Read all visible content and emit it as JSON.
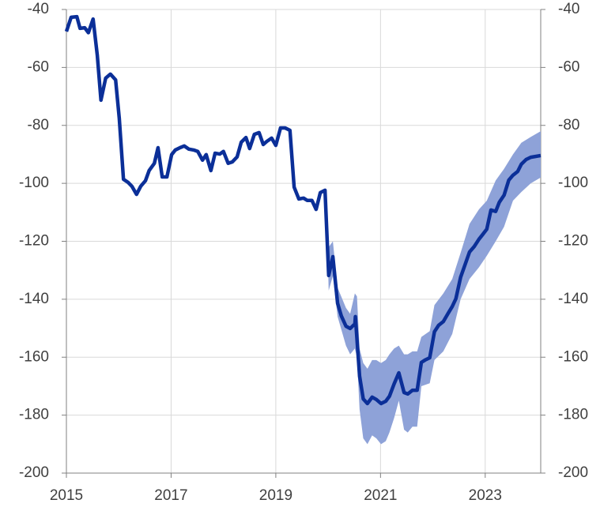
{
  "chart_data": {
    "type": "line",
    "xlim": [
      2015,
      2024.06
    ],
    "xticks": [
      2015,
      2017,
      2019,
      2021,
      2023
    ],
    "ylim": [
      -200,
      -40
    ],
    "yticks": [
      -200,
      -180,
      -160,
      -140,
      -120,
      -100,
      -80,
      -60,
      -40
    ],
    "y2lim": [
      -200,
      -40
    ],
    "y2ticks": [
      -200,
      -180,
      -160,
      -140,
      -120,
      -100,
      -80,
      -60,
      -40
    ],
    "grid": true,
    "band": {
      "color": "#8ea2d8",
      "x": [
        2019.94,
        2019.97,
        2020.01,
        2020.09,
        2020.18,
        2020.34,
        2020.42,
        2020.51,
        2020.55,
        2020.6,
        2020.67,
        2020.75,
        2020.84,
        2020.92,
        2021.01,
        2021.1,
        2021.17,
        2021.26,
        2021.35,
        2021.45,
        2021.52,
        2021.61,
        2021.7,
        2021.78,
        2021.94,
        2022.03,
        2022.2,
        2022.37,
        2022.53,
        2022.7,
        2022.88,
        2023.03,
        2023.2,
        2023.36,
        2023.53,
        2023.69,
        2023.87,
        2024.06
      ],
      "upper": [
        -102.4,
        -102.4,
        -122,
        -120,
        -136,
        -143,
        -145,
        -138,
        -139,
        -157,
        -162,
        -164,
        -161,
        -161,
        -162,
        -161,
        -159,
        -157,
        -156,
        -159,
        -159,
        -158,
        -158,
        -153,
        -151,
        -142,
        -138,
        -133,
        -124,
        -114,
        -109,
        -106,
        -99,
        -95,
        -90,
        -86,
        -84,
        -82
      ],
      "lower": [
        -102.4,
        -110,
        -137,
        -132,
        -146,
        -156,
        -159,
        -157,
        -160,
        -178,
        -188,
        -190,
        -187,
        -188,
        -190,
        -189,
        -186,
        -181,
        -175,
        -185,
        -186,
        -184,
        -184,
        -170,
        -169,
        -161,
        -158,
        -152,
        -140,
        -133,
        -129,
        -125,
        -120,
        -115,
        -106,
        -103,
        -100,
        -98
      ]
    },
    "series": [
      {
        "color": "#0b2f98",
        "x": [
          2015.0,
          2015.09,
          2015.2,
          2015.26,
          2015.35,
          2015.42,
          2015.51,
          2015.59,
          2015.66,
          2015.75,
          2015.84,
          2015.94,
          2016.01,
          2016.09,
          2016.18,
          2016.25,
          2016.34,
          2016.42,
          2016.51,
          2016.58,
          2016.68,
          2016.75,
          2016.83,
          2016.92,
          2017.01,
          2017.08,
          2017.17,
          2017.25,
          2017.34,
          2017.43,
          2017.51,
          2017.6,
          2017.67,
          2017.76,
          2017.84,
          2017.93,
          2018.0,
          2018.09,
          2018.17,
          2018.26,
          2018.34,
          2018.43,
          2018.5,
          2018.59,
          2018.68,
          2018.76,
          2018.83,
          2018.92,
          2019.0,
          2019.09,
          2019.18,
          2019.27,
          2019.35,
          2019.44,
          2019.53,
          2019.6,
          2019.69,
          2019.77,
          2019.85,
          2019.94,
          2020.01,
          2020.09,
          2020.18,
          2020.25,
          2020.34,
          2020.42,
          2020.51,
          2020.52,
          2020.6,
          2020.67,
          2020.75,
          2020.84,
          2020.92,
          2021.01,
          2021.1,
          2021.17,
          2021.26,
          2021.35,
          2021.45,
          2021.52,
          2021.61,
          2021.7,
          2021.78,
          2021.85,
          2021.94,
          2022.03,
          2022.11,
          2022.2,
          2022.29,
          2022.37,
          2022.44,
          2022.53,
          2022.7,
          2022.79,
          2022.88,
          2022.95,
          2023.03,
          2023.11,
          2023.2,
          2023.27,
          2023.36,
          2023.45,
          2023.53,
          2023.62,
          2023.69,
          2023.78,
          2023.87,
          2024.06
        ],
        "values": [
          -47.6,
          -42.7,
          -42.5,
          -46.5,
          -46.3,
          -48,
          -43.3,
          -55.8,
          -71.3,
          -63.7,
          -62.3,
          -64.3,
          -77.6,
          -98.6,
          -99.7,
          -101,
          -103.8,
          -101,
          -99.1,
          -95.6,
          -93.1,
          -87.7,
          -97.8,
          -97.8,
          -90.1,
          -88.5,
          -87.7,
          -87.1,
          -88.2,
          -88.5,
          -89,
          -92,
          -90.1,
          -95.6,
          -89.6,
          -89.9,
          -89,
          -93.1,
          -92.6,
          -90.9,
          -85.8,
          -84.2,
          -88,
          -83.1,
          -82.5,
          -86.6,
          -85.5,
          -84.4,
          -86.9,
          -80.9,
          -80.9,
          -81.7,
          -101.3,
          -105.4,
          -105.1,
          -105.9,
          -105.9,
          -109,
          -103.2,
          -102.4,
          -131.8,
          -125.3,
          -141.4,
          -145.7,
          -149.3,
          -150.1,
          -148.5,
          -146,
          -166.5,
          -174.4,
          -176,
          -173.8,
          -174.6,
          -176,
          -175.2,
          -173.5,
          -169.2,
          -165.4,
          -172.2,
          -172.7,
          -171.4,
          -171.4,
          -161.8,
          -161,
          -160.2,
          -151.2,
          -149,
          -147.7,
          -144.9,
          -142.5,
          -139.8,
          -132.4,
          -123.7,
          -121.8,
          -119.3,
          -117.7,
          -115.8,
          -109.2,
          -109.7,
          -106.5,
          -104.1,
          -98.9,
          -97.2,
          -95.9,
          -93.4,
          -91.8,
          -91,
          -90.4
        ]
      }
    ]
  }
}
